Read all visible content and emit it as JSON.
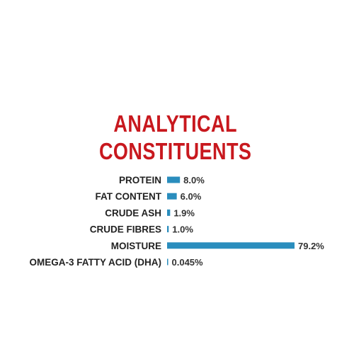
{
  "chart_data": {
    "type": "bar",
    "orientation": "horizontal",
    "title_lines": [
      "ANALYTICAL",
      "CONSTITUENTS"
    ],
    "categories": [
      "PROTEIN",
      "FAT CONTENT",
      "CRUDE ASH",
      "CRUDE FIBRES",
      "MOISTURE",
      "OMEGA-3 FATTY ACID (DHA)"
    ],
    "values": [
      8.0,
      6.0,
      1.9,
      1.0,
      79.2,
      0.045
    ],
    "value_labels": [
      "8.0%",
      "6.0%",
      "1.9%",
      "1.0%",
      "79.2%",
      "0.045%"
    ],
    "unit": "%",
    "xlim": [
      0,
      79.2
    ],
    "grid": false,
    "legend": "none"
  },
  "colors": {
    "title": "#c8181e",
    "bar": "#2a8dbd",
    "label": "#222222",
    "background": "#ffffff"
  }
}
